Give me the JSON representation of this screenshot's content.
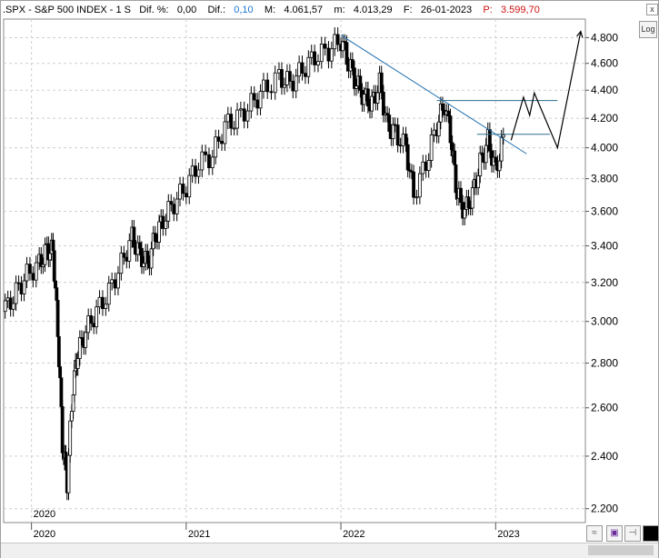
{
  "header": {
    "symbol": ".SPX - S&P 500 INDEX - 1 S",
    "dif_label": "Dif. %:",
    "dif_value": "0,00",
    "dif2_label": "Dif.:",
    "dif2_value": "0,10",
    "max_label": "M:",
    "max_value": "4.061,57",
    "min_label": "m:",
    "min_value": "4.013,29",
    "date_label": "F:",
    "date_value": "26-01-2023",
    "price_label": "P:",
    "price_value": "3.599,70"
  },
  "controls": {
    "log_label": "Log",
    "close_label": "x"
  },
  "colors": {
    "trendline": "#1f6fb0",
    "resistance": "#2a6f8f",
    "candles": "#000000",
    "accent_blue": "#1f77d0",
    "accent_red": "#d01010"
  },
  "chart_data": {
    "type": "line",
    "title": ".SPX - S&P 500 INDEX - 1 S",
    "scale": "log",
    "ylim": [
      2150,
      4950
    ],
    "y_ticks": [
      "4.800",
      "4.600",
      "4.400",
      "4.200",
      "4.000",
      "3.800",
      "3.600",
      "3.400",
      "3.200",
      "3.000",
      "2.800",
      "2.600",
      "2.400",
      "2.200"
    ],
    "y_tick_values": [
      4800,
      4600,
      4400,
      4200,
      4000,
      3800,
      3600,
      3400,
      3200,
      3000,
      2800,
      2600,
      2400,
      2200
    ],
    "x_ticks": [
      "2020",
      "2021",
      "2022",
      "2023"
    ],
    "x_tick_values": [
      2020,
      2021,
      2022,
      2023
    ],
    "xlim": [
      2019.82,
      2023.58
    ],
    "grid": true,
    "series": [
      {
        "type": "weekly-candles",
        "x": [
          2019.83,
          2019.9,
          2019.97,
          2020.05,
          2020.1,
          2020.14,
          2020.17,
          2020.2,
          2020.23,
          2020.27,
          2020.3,
          2020.35,
          2020.42,
          2020.5,
          2020.58,
          2020.65,
          2020.7,
          2020.75,
          2020.8,
          2020.85,
          2020.92,
          2021.0,
          2021.08,
          2021.17,
          2021.25,
          2021.33,
          2021.42,
          2021.5,
          2021.6,
          2021.67,
          2021.75,
          2021.83,
          2021.92,
          2022.0,
          2022.05,
          2022.1,
          2022.15,
          2022.2,
          2022.25,
          2022.3,
          2022.35,
          2022.42,
          2022.47,
          2022.55,
          2022.62,
          2022.67,
          2022.72,
          2022.75,
          2022.8,
          2022.85,
          2022.9,
          2022.95,
          2023.0,
          2023.05
        ],
        "values": [
          3050,
          3150,
          3240,
          3300,
          3380,
          3370,
          2950,
          2450,
          2300,
          2700,
          2850,
          2950,
          3050,
          3150,
          3300,
          3450,
          3350,
          3300,
          3450,
          3550,
          3650,
          3750,
          3900,
          3950,
          4150,
          4200,
          4300,
          4400,
          4500,
          4450,
          4550,
          4650,
          4700,
          4780,
          4600,
          4450,
          4350,
          4300,
          4450,
          4150,
          4100,
          4000,
          3700,
          3900,
          4150,
          4300,
          4000,
          3700,
          3600,
          3700,
          3900,
          4050,
          3850,
          4060
        ]
      },
      {
        "type": "projection",
        "x": [
          2023.1,
          2023.18,
          2023.22,
          2023.25,
          2023.4,
          2023.55
        ],
        "values": [
          4050,
          4350,
          4220,
          4380,
          4000,
          4850
        ]
      }
    ],
    "annotations": [
      {
        "type": "trendline",
        "x": [
          2022.0,
          2023.2
        ],
        "values": [
          4820,
          3960
        ]
      },
      {
        "type": "horizontal",
        "x": [
          2022.62,
          2023.4
        ],
        "values": [
          4325,
          4325
        ]
      },
      {
        "type": "horizontal",
        "x": [
          2022.88,
          2023.35
        ],
        "values": [
          4090,
          4090
        ]
      }
    ]
  }
}
